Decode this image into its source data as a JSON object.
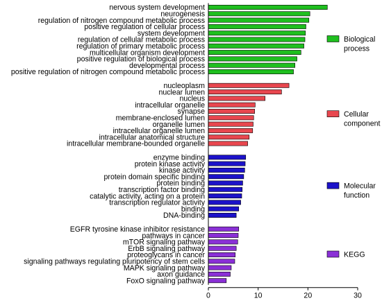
{
  "chart_data": {
    "type": "bar",
    "orientation": "horizontal",
    "xlabel": "−log 10 (p-value)",
    "xlim": [
      0,
      30
    ],
    "xticks": [
      0,
      10,
      20,
      30
    ],
    "grid": false,
    "legend_placement": "right, one entry beside each group",
    "groups": [
      {
        "name": "Biological process",
        "color": "#1fbf1f",
        "categories": [
          "nervous system development",
          "neurogenesis",
          "regulation of nitrogen compound metabolic process",
          "positive regulation of cellular process",
          "system development",
          "regulation of cellular metabolic process",
          "regulation of primary metabolic process",
          "multicellular organism development",
          "positive regulation of biological process",
          "developmental process",
          "positive regulation of nitrogen compound metabolic process"
        ],
        "values": [
          23.9,
          20.4,
          20.2,
          19.6,
          19.5,
          19.4,
          19.2,
          18.6,
          17.8,
          17.4,
          17.1
        ]
      },
      {
        "name": "Cellular component",
        "color": "#e8474f",
        "categories": [
          "nucleoplasm",
          "nuclear lumen",
          "nucleus",
          "intracellular organelle",
          "synapse",
          "membrane-enclosed lumen",
          "organelle lumen",
          "intracellular organelle lumen",
          "intracellular anatomical structure",
          "intracellular membrane-bounded organelle"
        ],
        "values": [
          16.2,
          14.7,
          11.4,
          9.4,
          9.3,
          9.1,
          9.0,
          8.9,
          8.2,
          7.9
        ]
      },
      {
        "name": "Molecular function",
        "color": "#1c12c9",
        "categories": [
          "enzyme binding",
          "protein kinase activity",
          "kinase activity",
          "protein domain specific binding",
          "protein binding",
          "transcription factor binding",
          "catalytic activity, acting on a protein",
          "transcription regulator activity",
          "binding",
          "DNA-binding"
        ],
        "values": [
          7.5,
          7.4,
          7.3,
          7.1,
          6.9,
          6.8,
          6.7,
          6.5,
          6.1,
          5.6
        ]
      },
      {
        "name": "KEGG",
        "color": "#8a30d6",
        "categories": [
          "EGFR tyrosine kinase inhibitor resistance",
          "pathways in cancer",
          "mTOR signaling pathway",
          "ErbB signaling pathway",
          "proteoglycans in cancer",
          "signaling pathways regulating pluripotency of stem cells",
          "MAPK signaling pathway",
          "axon guidance",
          "FoxO signaling pathway"
        ],
        "values": [
          6.1,
          6.0,
          5.9,
          5.6,
          5.4,
          5.3,
          4.6,
          4.4,
          3.6
        ]
      }
    ]
  }
}
